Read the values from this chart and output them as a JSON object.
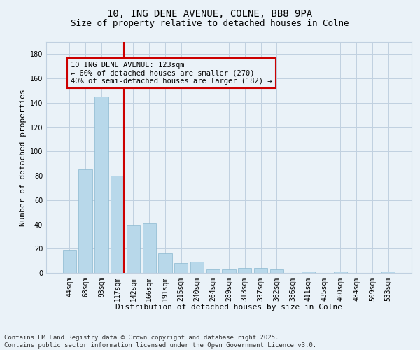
{
  "title_line1": "10, ING DENE AVENUE, COLNE, BB8 9PA",
  "title_line2": "Size of property relative to detached houses in Colne",
  "xlabel": "Distribution of detached houses by size in Colne",
  "ylabel": "Number of detached properties",
  "categories": [
    "44sqm",
    "68sqm",
    "93sqm",
    "117sqm",
    "142sqm",
    "166sqm",
    "191sqm",
    "215sqm",
    "240sqm",
    "264sqm",
    "289sqm",
    "313sqm",
    "337sqm",
    "362sqm",
    "386sqm",
    "411sqm",
    "435sqm",
    "460sqm",
    "484sqm",
    "509sqm",
    "533sqm"
  ],
  "values": [
    19,
    85,
    145,
    80,
    39,
    41,
    16,
    8,
    9,
    3,
    3,
    4,
    4,
    3,
    0,
    1,
    0,
    1,
    0,
    0,
    1
  ],
  "bar_color": "#b8d8ea",
  "bar_edge_color": "#8ab8d0",
  "vline_color": "#cc0000",
  "annotation_box_text": "10 ING DENE AVENUE: 123sqm\n← 60% of detached houses are smaller (270)\n40% of semi-detached houses are larger (182) →",
  "annotation_box_color": "#cc0000",
  "ylim": [
    0,
    190
  ],
  "yticks": [
    0,
    20,
    40,
    60,
    80,
    100,
    120,
    140,
    160,
    180
  ],
  "grid_color": "#c0d0e0",
  "bg_color": "#eaf2f8",
  "footer_line1": "Contains HM Land Registry data © Crown copyright and database right 2025.",
  "footer_line2": "Contains public sector information licensed under the Open Government Licence v3.0.",
  "title_fontsize": 10,
  "subtitle_fontsize": 9,
  "axis_label_fontsize": 8,
  "tick_fontsize": 7,
  "annotation_fontsize": 7.5,
  "footer_fontsize": 6.5
}
